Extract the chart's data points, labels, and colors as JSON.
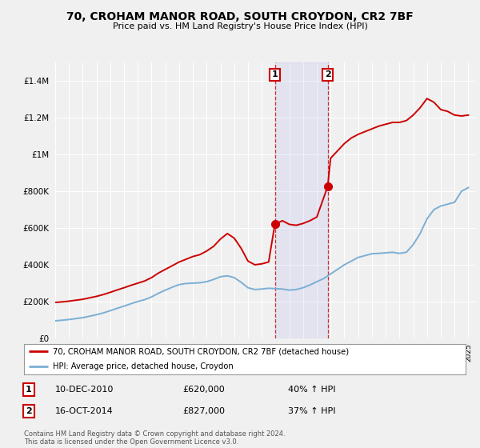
{
  "title": "70, CROHAM MANOR ROAD, SOUTH CROYDON, CR2 7BF",
  "subtitle": "Price paid vs. HM Land Registry's House Price Index (HPI)",
  "legend_line1": "70, CROHAM MANOR ROAD, SOUTH CROYDON, CR2 7BF (detached house)",
  "legend_line2": "HPI: Average price, detached house, Croydon",
  "footnote": "Contains HM Land Registry data © Crown copyright and database right 2024.\nThis data is licensed under the Open Government Licence v3.0.",
  "transactions": [
    {
      "label": "1",
      "date": "10-DEC-2010",
      "price": 620000,
      "hpi_pct": "40% ↑ HPI",
      "year": 2010.95
    },
    {
      "label": "2",
      "date": "16-OCT-2014",
      "price": 827000,
      "hpi_pct": "37% ↑ HPI",
      "year": 2014.79
    }
  ],
  "vline1_x": 2010.95,
  "vline2_x": 2014.79,
  "shade_x1": 2010.95,
  "shade_x2": 2014.79,
  "ylim": [
    0,
    1500000
  ],
  "xlim_start": 1995.0,
  "xlim_end": 2025.5,
  "hpi_color": "#7bafd4",
  "price_color": "#cc0000",
  "background_color": "#f0f0f0",
  "grid_color": "#ffffff",
  "hpi_data_x": [
    1995.0,
    1995.5,
    1996.0,
    1996.5,
    1997.0,
    1997.5,
    1998.0,
    1998.5,
    1999.0,
    1999.5,
    2000.0,
    2000.5,
    2001.0,
    2001.5,
    2002.0,
    2002.5,
    2003.0,
    2003.5,
    2004.0,
    2004.5,
    2005.0,
    2005.5,
    2006.0,
    2006.5,
    2007.0,
    2007.5,
    2008.0,
    2008.5,
    2009.0,
    2009.5,
    2010.0,
    2010.5,
    2011.0,
    2011.5,
    2012.0,
    2012.5,
    2013.0,
    2013.5,
    2014.0,
    2014.5,
    2015.0,
    2015.5,
    2016.0,
    2016.5,
    2017.0,
    2017.5,
    2018.0,
    2018.5,
    2019.0,
    2019.5,
    2020.0,
    2020.5,
    2021.0,
    2021.5,
    2022.0,
    2022.5,
    2023.0,
    2023.5,
    2024.0,
    2024.5,
    2025.0
  ],
  "hpi_data_y": [
    95000,
    98000,
    102000,
    107000,
    112000,
    120000,
    128000,
    138000,
    150000,
    163000,
    175000,
    188000,
    200000,
    210000,
    225000,
    245000,
    262000,
    278000,
    292000,
    298000,
    300000,
    302000,
    308000,
    320000,
    335000,
    340000,
    330000,
    305000,
    275000,
    265000,
    268000,
    272000,
    270000,
    268000,
    262000,
    265000,
    275000,
    290000,
    308000,
    325000,
    350000,
    375000,
    400000,
    420000,
    440000,
    450000,
    460000,
    462000,
    465000,
    468000,
    462000,
    468000,
    510000,
    570000,
    650000,
    700000,
    720000,
    730000,
    740000,
    800000,
    820000
  ],
  "price_data_x": [
    1995.0,
    1995.5,
    1996.0,
    1996.5,
    1997.0,
    1997.5,
    1998.0,
    1998.5,
    1999.0,
    1999.5,
    2000.0,
    2000.5,
    2001.0,
    2001.5,
    2002.0,
    2002.5,
    2003.0,
    2003.5,
    2004.0,
    2004.5,
    2005.0,
    2005.5,
    2006.0,
    2006.5,
    2007.0,
    2007.5,
    2008.0,
    2008.5,
    2009.0,
    2009.5,
    2010.0,
    2010.5,
    2010.95,
    2011.5,
    2012.0,
    2012.5,
    2013.0,
    2013.5,
    2014.0,
    2014.79,
    2015.0,
    2015.5,
    2016.0,
    2016.5,
    2017.0,
    2017.5,
    2018.0,
    2018.5,
    2019.0,
    2019.5,
    2020.0,
    2020.5,
    2021.0,
    2021.5,
    2022.0,
    2022.5,
    2023.0,
    2023.5,
    2024.0,
    2024.5,
    2025.0
  ],
  "price_data_y": [
    195000,
    198000,
    202000,
    207000,
    212000,
    220000,
    228000,
    238000,
    250000,
    263000,
    275000,
    288000,
    300000,
    312000,
    330000,
    355000,
    375000,
    395000,
    415000,
    430000,
    445000,
    455000,
    475000,
    500000,
    540000,
    570000,
    545000,
    490000,
    420000,
    400000,
    405000,
    415000,
    620000,
    640000,
    620000,
    615000,
    625000,
    640000,
    660000,
    827000,
    980000,
    1020000,
    1060000,
    1090000,
    1110000,
    1125000,
    1140000,
    1155000,
    1165000,
    1175000,
    1175000,
    1185000,
    1215000,
    1255000,
    1305000,
    1285000,
    1245000,
    1235000,
    1215000,
    1210000,
    1215000
  ]
}
